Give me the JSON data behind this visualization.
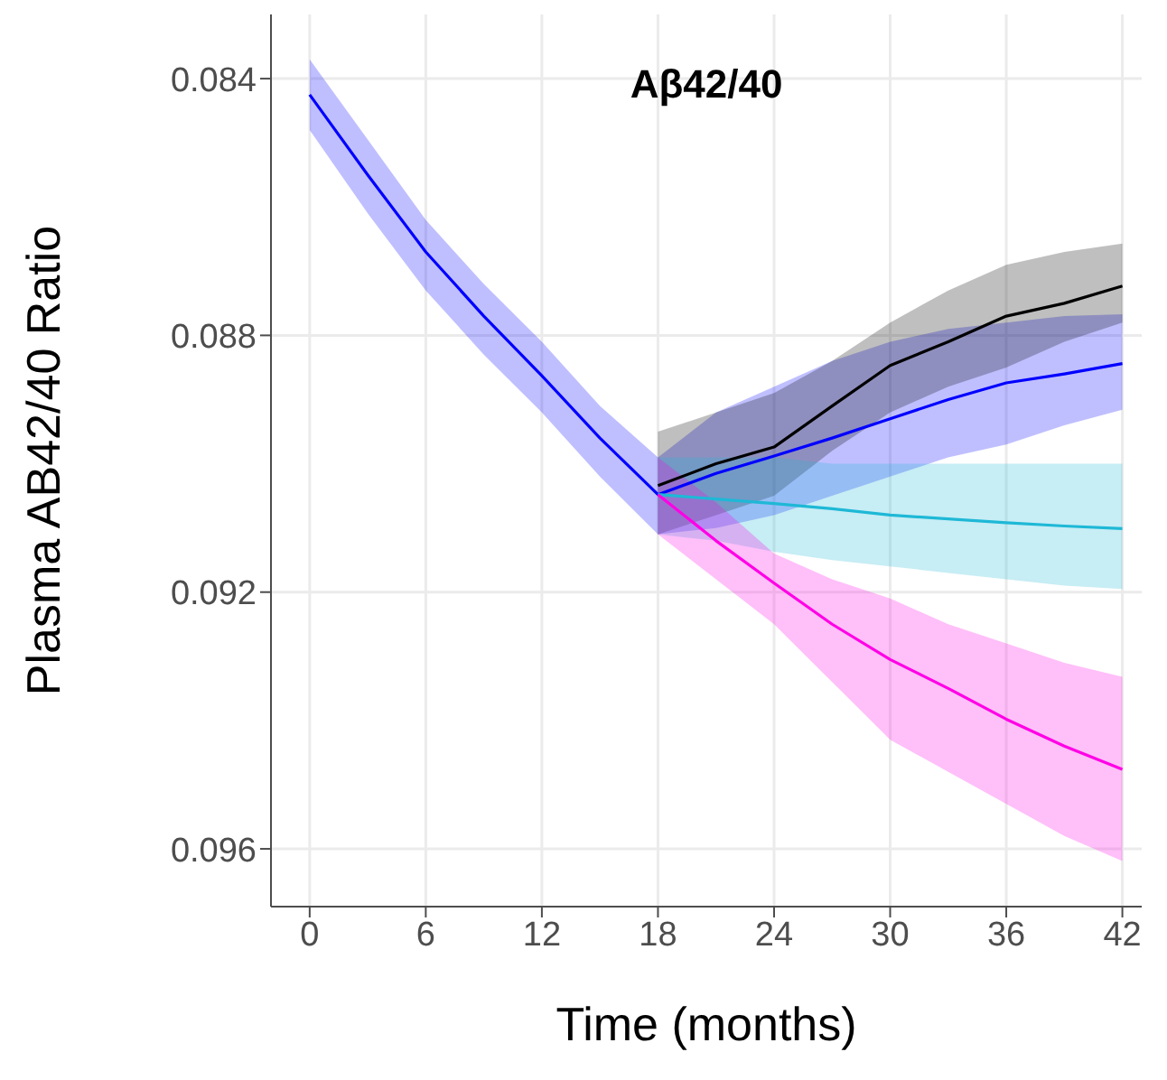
{
  "chart_data": {
    "type": "line",
    "title": "Aβ42/40",
    "xlabel": "Time (months)",
    "ylabel": "Plasma AB42/40 Ratio",
    "xlim": [
      -2,
      43
    ],
    "xticks": [
      0,
      6,
      12,
      18,
      24,
      30,
      36,
      42
    ],
    "ylim": [
      0.0969,
      0.083
    ],
    "yticks": [
      0.084,
      0.088,
      0.092,
      0.096
    ],
    "grid": true,
    "legend": false,
    "series": [
      {
        "color": "#0000ff",
        "x": [
          0,
          3,
          6,
          9,
          12,
          15,
          18,
          21,
          24,
          27,
          30,
          33,
          36,
          39,
          42
        ],
        "values": [
          0.08425,
          0.0855,
          0.0867,
          0.0877,
          0.08863,
          0.0896,
          0.09048,
          0.09015,
          0.08988,
          0.0896,
          0.0893,
          0.089,
          0.08874,
          0.0886,
          0.08844
        ],
        "lower": [
          0.0837,
          0.08495,
          0.0862,
          0.0872,
          0.0881,
          0.0891,
          0.0899,
          0.0892,
          0.0888,
          0.0884,
          0.0881,
          0.0879,
          0.0878,
          0.0877,
          0.08767
        ],
        "upper": [
          0.0848,
          0.0861,
          0.0873,
          0.0883,
          0.0892,
          0.0902,
          0.0911,
          0.091,
          0.0908,
          0.0905,
          0.0902,
          0.0899,
          0.0897,
          0.0894,
          0.08916
        ]
      },
      {
        "color": "#000000",
        "x": [
          18,
          21,
          24,
          27,
          30,
          33,
          36,
          39,
          42
        ],
        "values": [
          0.09034,
          0.09,
          0.08974,
          0.0891,
          0.08847,
          0.0881,
          0.0877,
          0.0875,
          0.08723
        ],
        "lower": [
          0.0895,
          0.0892,
          0.0889,
          0.0884,
          0.0878,
          0.0873,
          0.0869,
          0.0867,
          0.08657
        ],
        "upper": [
          0.0911,
          0.0908,
          0.0905,
          0.0898,
          0.0892,
          0.0888,
          0.0885,
          0.0881,
          0.0878
        ]
      },
      {
        "color": "#1eb8d6",
        "x": [
          18,
          21,
          24,
          27,
          30,
          33,
          36,
          39,
          42
        ],
        "values": [
          0.09048,
          0.09055,
          0.09062,
          0.0907,
          0.0908,
          0.09086,
          0.09092,
          0.09097,
          0.09101
        ],
        "lower": [
          0.0899,
          0.0899,
          0.0899,
          0.09,
          0.09,
          0.09,
          0.09,
          0.09,
          0.09
        ],
        "upper": [
          0.0911,
          0.0912,
          0.09137,
          0.0915,
          0.0916,
          0.0917,
          0.0918,
          0.0919,
          0.09195
        ]
      },
      {
        "color": "#ff00e6",
        "x": [
          18,
          21,
          24,
          27,
          30,
          33,
          36,
          39,
          42
        ],
        "values": [
          0.09048,
          0.0912,
          0.09186,
          0.0925,
          0.09305,
          0.0935,
          0.09398,
          0.0944,
          0.09476
        ],
        "lower": [
          0.0899,
          0.0906,
          0.0914,
          0.0918,
          0.0921,
          0.0925,
          0.0928,
          0.0931,
          0.09332
        ],
        "upper": [
          0.0911,
          0.0918,
          0.0925,
          0.0934,
          0.0943,
          0.0948,
          0.0953,
          0.0958,
          0.09619
        ]
      }
    ]
  }
}
